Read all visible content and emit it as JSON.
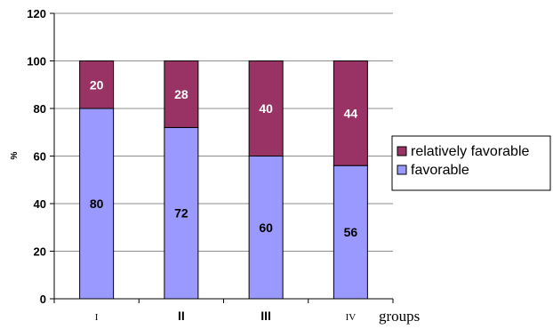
{
  "chart_data": {
    "type": "bar",
    "stacked": true,
    "categories": [
      "I",
      "II",
      "III",
      "IV"
    ],
    "series": [
      {
        "name": "favorable",
        "values": [
          80,
          72,
          60,
          56
        ],
        "color": "#9999ff",
        "label_color": "#000000"
      },
      {
        "name": "relatively favorable",
        "values": [
          20,
          28,
          40,
          44
        ],
        "color": "#993366",
        "label_color": "#ffffff"
      }
    ],
    "title": "",
    "xlabel": "groups",
    "ylabel": "%",
    "ylim": [
      0,
      120
    ],
    "yticks": [
      0,
      20,
      40,
      60,
      80,
      100,
      120
    ],
    "grid": true,
    "legend_position": "right",
    "legend_order": [
      "relatively favorable",
      "favorable"
    ]
  }
}
